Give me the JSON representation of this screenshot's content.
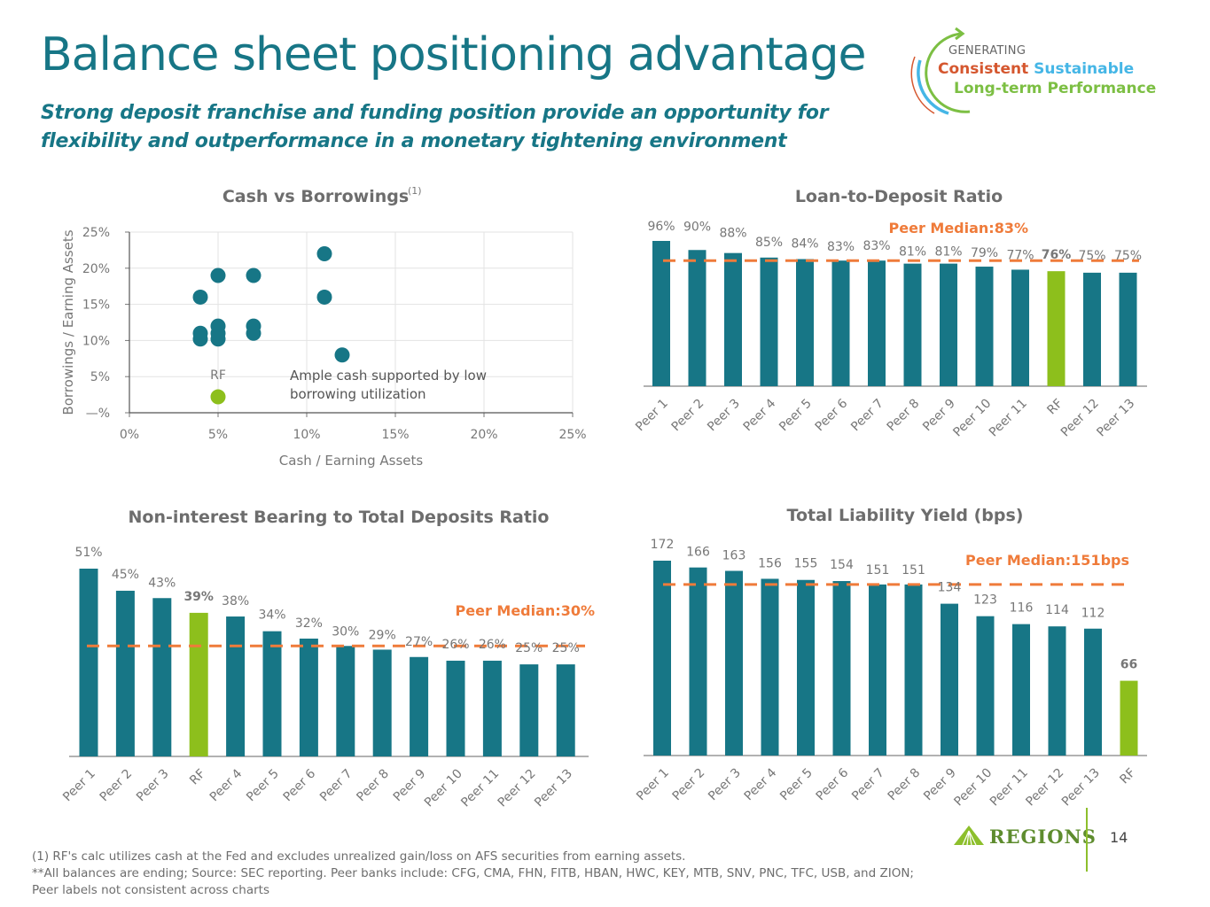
{
  "header": {
    "title": "Balance sheet positioning advantage",
    "subtitle": "Strong deposit franchise and funding position provide an opportunity for flexibility and outperformance in a monetary tightening environment"
  },
  "logo": {
    "line_generating": "GENERATING",
    "word_consistent": "Consistent",
    "word_sustainable": "Sustainable",
    "line_longterm": "Long-term Performance",
    "colors": {
      "consistent": "#d5572f",
      "sustainable": "#45b6e6",
      "longterm": "#7cbf43"
    }
  },
  "colors": {
    "peer_bar": "#177686",
    "rf_bar": "#8dbf1c",
    "median_line": "#ef7b3a",
    "text_gray": "#777777"
  },
  "chart_data": [
    {
      "id": "cash-vs-borrowings",
      "type": "scatter",
      "title": "Cash vs Borrowings",
      "title_footnote": "(1)",
      "xlabel": "Cash / Earning Assets",
      "ylabel": "Borrowings / Earning Assets",
      "xlim": [
        0,
        25
      ],
      "ylim": [
        0,
        25
      ],
      "x_ticks": [
        "0%",
        "5%",
        "10%",
        "15%",
        "20%",
        "25%"
      ],
      "y_ticks": [
        "—%",
        "5%",
        "10%",
        "15%",
        "20%",
        "25%"
      ],
      "grid": true,
      "annotation": [
        "Ample cash supported by low",
        "borrowing utilization"
      ],
      "points": [
        {
          "label": "",
          "x": 4,
          "y": 16
        },
        {
          "label": "",
          "x": 4,
          "y": 11
        },
        {
          "label": "",
          "x": 4,
          "y": 10.2
        },
        {
          "label": "",
          "x": 5,
          "y": 19
        },
        {
          "label": "",
          "x": 5,
          "y": 12
        },
        {
          "label": "",
          "x": 5,
          "y": 11
        },
        {
          "label": "",
          "x": 5,
          "y": 10.2
        },
        {
          "label": "",
          "x": 7,
          "y": 19
        },
        {
          "label": "",
          "x": 7,
          "y": 12
        },
        {
          "label": "",
          "x": 7,
          "y": 11
        },
        {
          "label": "",
          "x": 11,
          "y": 22
        },
        {
          "label": "",
          "x": 11,
          "y": 16
        },
        {
          "label": "",
          "x": 12,
          "y": 8
        },
        {
          "label": "RF",
          "x": 5,
          "y": 2.2,
          "highlight": true
        }
      ]
    },
    {
      "id": "loan-to-deposit",
      "type": "bar",
      "title": "Loan-to-Deposit Ratio",
      "categories": [
        "Peer 1",
        "Peer 2",
        "Peer 3",
        "Peer 4",
        "Peer 5",
        "Peer 6",
        "Peer 7",
        "Peer 8",
        "Peer 9",
        "Peer 10",
        "Peer 11",
        "RF",
        "Peer 12",
        "Peer 13"
      ],
      "values": [
        96,
        90,
        88,
        85,
        84,
        83,
        83,
        81,
        81,
        79,
        77,
        76,
        75,
        75
      ],
      "value_labels": [
        "96%",
        "90%",
        "88%",
        "85%",
        "84%",
        "83%",
        "83%",
        "81%",
        "81%",
        "79%",
        "77%",
        "76%",
        "75%",
        "75%"
      ],
      "highlight": "RF",
      "median": 83,
      "median_label": "Peer Median:83%",
      "ylim": [
        0,
        96
      ]
    },
    {
      "id": "non-interest-bearing",
      "type": "bar",
      "title": "Non-interest Bearing to Total Deposits Ratio",
      "categories": [
        "Peer 1",
        "Peer 2",
        "Peer 3",
        "RF",
        "Peer 4",
        "Peer 5",
        "Peer 6",
        "Peer 7",
        "Peer 8",
        "Peer 9",
        "Peer 10",
        "Peer 11",
        "Peer 12",
        "Peer 13"
      ],
      "values": [
        51,
        45,
        43,
        39,
        38,
        34,
        32,
        30,
        29,
        27,
        26,
        26,
        25,
        25
      ],
      "value_labels": [
        "51%",
        "45%",
        "43%",
        "39%",
        "38%",
        "34%",
        "32%",
        "30%",
        "29%",
        "27%",
        "26%",
        "26%",
        "25%",
        "25%"
      ],
      "highlight": "RF",
      "median": 30,
      "median_label": "Peer Median:30%",
      "ylim": [
        0,
        51
      ]
    },
    {
      "id": "total-liability-yield",
      "type": "bar",
      "title": "Total Liability Yield (bps)",
      "categories": [
        "Peer 1",
        "Peer 2",
        "Peer 3",
        "Peer 4",
        "Peer 5",
        "Peer 6",
        "Peer 7",
        "Peer 8",
        "Peer 9",
        "Peer 10",
        "Peer 11",
        "Peer 12",
        "Peer 13",
        "RF"
      ],
      "values": [
        172,
        166,
        163,
        156,
        155,
        154,
        151,
        151,
        134,
        123,
        116,
        114,
        112,
        66
      ],
      "value_labels": [
        "172",
        "166",
        "163",
        "156",
        "155",
        "154",
        "151",
        "151",
        "134",
        "123",
        "116",
        "114",
        "112",
        "66"
      ],
      "highlight": "RF",
      "median": 151,
      "median_label": "Peer Median:151bps",
      "ylim": [
        0,
        172
      ]
    }
  ],
  "footnotes": [
    "(1) RF's calc utilizes cash at the Fed and excludes unrealized gain/loss on AFS securities from earning assets.",
    "**All balances are ending; Source: SEC reporting. Peer banks include: CFG, CMA, FHN, FITB, HBAN, HWC, KEY, MTB, SNV, PNC, TFC, USB, and ZION; Peer labels not consistent across charts"
  ],
  "footer": {
    "brand": "Regions",
    "page_number": "14"
  }
}
